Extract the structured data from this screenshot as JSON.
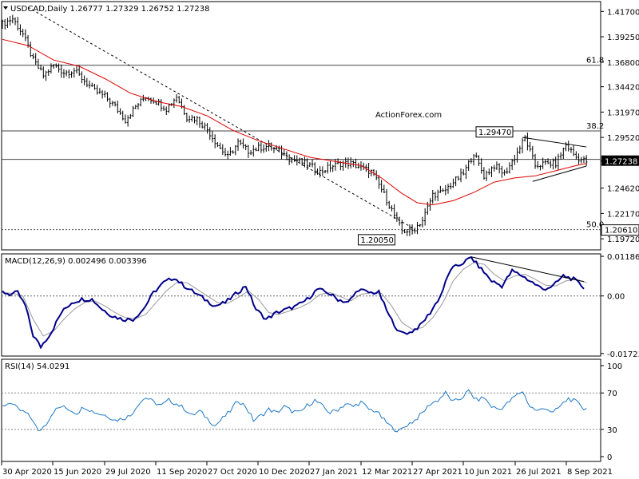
{
  "chart_data": [
    {
      "type": "candlestick",
      "symbol": "USDCAD",
      "timeframe": "Daily",
      "header_text": "USDCAD,Daily  1.26777 1.27329 1.26752 1.27238",
      "ohlc_last": {
        "open": 1.26777,
        "high": 1.27329,
        "low": 1.26752,
        "close": 1.27238
      },
      "last_price_label": "1.27238",
      "ylim": [
        1.1865,
        1.4265
      ],
      "y_ticks": [
        "1.41700",
        "1.39250",
        "1.36800",
        "1.34420",
        "1.31970",
        "1.29520",
        "1.27238",
        "1.24620",
        "1.22170",
        "1.19720"
      ],
      "x_ticks": [
        "30 Apr 2020",
        "15 Jun 2020",
        "29 Jul 2020",
        "11 Sep 2020",
        "27 Oct 2020",
        "10 Dec 2020",
        "27 Jan 2021",
        "12 Mar 2021",
        "27 Apr 2021",
        "10 Jun 2021",
        "26 Jul 2021",
        "8 Sep 2021"
      ],
      "price_path": [
        [
          0,
          1.405
        ],
        [
          4,
          1.41
        ],
        [
          8,
          1.395
        ],
        [
          12,
          1.37
        ],
        [
          16,
          1.355
        ],
        [
          20,
          1.365
        ],
        [
          24,
          1.358
        ],
        [
          28,
          1.36
        ],
        [
          32,
          1.35
        ],
        [
          36,
          1.34
        ],
        [
          40,
          1.335
        ],
        [
          44,
          1.325
        ],
        [
          48,
          1.312
        ],
        [
          52,
          1.325
        ],
        [
          56,
          1.335
        ],
        [
          60,
          1.33
        ],
        [
          64,
          1.323
        ],
        [
          68,
          1.335
        ],
        [
          72,
          1.315
        ],
        [
          76,
          1.313
        ],
        [
          80,
          1.303
        ],
        [
          84,
          1.288
        ],
        [
          88,
          1.276
        ],
        [
          92,
          1.29
        ],
        [
          96,
          1.282
        ],
        [
          100,
          1.285
        ],
        [
          104,
          1.287
        ],
        [
          108,
          1.282
        ],
        [
          112,
          1.275
        ],
        [
          116,
          1.272
        ],
        [
          120,
          1.268
        ],
        [
          124,
          1.262
        ],
        [
          128,
          1.267
        ],
        [
          132,
          1.27
        ],
        [
          136,
          1.27
        ],
        [
          140,
          1.266
        ],
        [
          144,
          1.262
        ],
        [
          148,
          1.245
        ],
        [
          152,
          1.225
        ],
        [
          156,
          1.205
        ],
        [
          160,
          1.205
        ],
        [
          164,
          1.215
        ],
        [
          168,
          1.24
        ],
        [
          172,
          1.242
        ],
        [
          176,
          1.252
        ],
        [
          180,
          1.26
        ],
        [
          184,
          1.28
        ],
        [
          188,
          1.258
        ],
        [
          192,
          1.268
        ],
        [
          196,
          1.26
        ],
        [
          200,
          1.276
        ],
        [
          204,
          1.295
        ],
        [
          208,
          1.268
        ],
        [
          212,
          1.27
        ],
        [
          216,
          1.27
        ],
        [
          220,
          1.288
        ],
        [
          224,
          1.276
        ],
        [
          228,
          1.272
        ]
      ],
      "moving_average": [
        [
          0,
          1.39
        ],
        [
          10,
          1.384
        ],
        [
          20,
          1.37
        ],
        [
          30,
          1.364
        ],
        [
          40,
          1.352
        ],
        [
          50,
          1.338
        ],
        [
          60,
          1.33
        ],
        [
          70,
          1.325
        ],
        [
          80,
          1.316
        ],
        [
          90,
          1.302
        ],
        [
          100,
          1.292
        ],
        [
          110,
          1.284
        ],
        [
          120,
          1.276
        ],
        [
          130,
          1.272
        ],
        [
          140,
          1.268
        ],
        [
          148,
          1.256
        ],
        [
          156,
          1.241
        ],
        [
          162,
          1.232
        ],
        [
          168,
          1.23
        ],
        [
          176,
          1.234
        ],
        [
          184,
          1.242
        ],
        [
          192,
          1.252
        ],
        [
          200,
          1.256
        ],
        [
          208,
          1.258
        ],
        [
          216,
          1.263
        ],
        [
          224,
          1.268
        ],
        [
          228,
          1.27
        ]
      ],
      "horizontal_levels": [
        {
          "value": 1.365,
          "label": "61.8"
        },
        {
          "value": 1.3015,
          "label": "38.2"
        },
        {
          "value": 1.274,
          "label": ""
        },
        {
          "value": 1.2061,
          "label": "50.0",
          "price_label": "1.20610",
          "style": "dashed"
        }
      ],
      "annotations": [
        {
          "text": "1.29470",
          "x": 203,
          "y": 1.2947
        },
        {
          "text": "1.20050",
          "x": 157,
          "y": 1.2005
        }
      ],
      "trendlines": [
        {
          "from": [
            10,
            1.421
          ],
          "to": [
            161,
            1.2065
          ],
          "style": "dashed"
        },
        {
          "from": [
            203,
            1.2952
          ],
          "to": [
            228,
            1.286
          ],
          "style": "solid"
        },
        {
          "from": [
            207,
            1.2527
          ],
          "to": [
            228,
            1.2675
          ],
          "style": "solid"
        }
      ],
      "watermark": "ActionForex.com"
    },
    {
      "type": "line",
      "title": "MACD(12,26,9) 0.002496 0.003396",
      "y_ticks": [
        "0.011862",
        "0.00",
        "-0.017238"
      ],
      "ylim": [
        -0.018,
        0.0126
      ],
      "macd": [
        [
          0,
          0.0012
        ],
        [
          3,
          0.0005
        ],
        [
          6,
          0.001
        ],
        [
          9,
          -0.003
        ],
        [
          12,
          -0.0118
        ],
        [
          15,
          -0.0152
        ],
        [
          19,
          -0.011
        ],
        [
          23,
          -0.005
        ],
        [
          27,
          -0.002
        ],
        [
          31,
          -0.001
        ],
        [
          35,
          -0.001
        ],
        [
          39,
          -0.004
        ],
        [
          43,
          -0.006
        ],
        [
          47,
          -0.007
        ],
        [
          51,
          -0.007
        ],
        [
          55,
          -0.004
        ],
        [
          59,
          0.001
        ],
        [
          63,
          0.004
        ],
        [
          67,
          0.0055
        ],
        [
          71,
          0.003
        ],
        [
          75,
          0.001
        ],
        [
          79,
          -0.001
        ],
        [
          83,
          -0.003
        ],
        [
          87,
          -0.002
        ],
        [
          91,
          0.0005
        ],
        [
          95,
          0.003
        ],
        [
          99,
          -0.004
        ],
        [
          103,
          -0.007
        ],
        [
          107,
          -0.005
        ],
        [
          111,
          -0.004
        ],
        [
          115,
          -0.003
        ],
        [
          119,
          -0.001
        ],
        [
          123,
          0.002
        ],
        [
          127,
          0.001
        ],
        [
          131,
          -0.001
        ],
        [
          135,
          -0.002
        ],
        [
          139,
          0.002
        ],
        [
          143,
          0.001
        ],
        [
          147,
          0.001
        ],
        [
          151,
          -0.006
        ],
        [
          155,
          -0.011
        ],
        [
          159,
          -0.011
        ],
        [
          163,
          -0.009
        ],
        [
          167,
          -0.005
        ],
        [
          171,
          0.0
        ],
        [
          175,
          0.008
        ],
        [
          179,
          0.0095
        ],
        [
          183,
          0.0115
        ],
        [
          187,
          0.008
        ],
        [
          191,
          0.0045
        ],
        [
          195,
          0.003
        ],
        [
          199,
          0.0075
        ],
        [
          203,
          0.006
        ],
        [
          207,
          0.004
        ],
        [
          211,
          0.002
        ],
        [
          215,
          0.003
        ],
        [
          219,
          0.006
        ],
        [
          223,
          0.005
        ],
        [
          227,
          0.0025
        ]
      ],
      "signal": [
        [
          0,
          0.001
        ],
        [
          4,
          0.0008
        ],
        [
          8,
          0.0
        ],
        [
          12,
          -0.007
        ],
        [
          16,
          -0.012
        ],
        [
          20,
          -0.0105
        ],
        [
          24,
          -0.007
        ],
        [
          28,
          -0.004
        ],
        [
          32,
          -0.002
        ],
        [
          36,
          -0.0015
        ],
        [
          40,
          -0.003
        ],
        [
          44,
          -0.005
        ],
        [
          48,
          -0.0065
        ],
        [
          52,
          -0.0068
        ],
        [
          56,
          -0.0055
        ],
        [
          60,
          -0.002
        ],
        [
          64,
          0.0015
        ],
        [
          68,
          0.004
        ],
        [
          72,
          0.004
        ],
        [
          76,
          0.002
        ],
        [
          80,
          0.0
        ],
        [
          84,
          -0.002
        ],
        [
          88,
          -0.0022
        ],
        [
          92,
          -0.0005
        ],
        [
          96,
          0.0015
        ],
        [
          100,
          -0.001
        ],
        [
          104,
          -0.005
        ],
        [
          108,
          -0.0055
        ],
        [
          112,
          -0.0045
        ],
        [
          116,
          -0.0035
        ],
        [
          120,
          -0.002
        ],
        [
          124,
          0.0005
        ],
        [
          128,
          0.001
        ],
        [
          132,
          -0.0002
        ],
        [
          136,
          -0.0015
        ],
        [
          140,
          0.0005
        ],
        [
          144,
          0.001
        ],
        [
          148,
          0.0008
        ],
        [
          152,
          -0.003
        ],
        [
          156,
          -0.008
        ],
        [
          160,
          -0.01
        ],
        [
          164,
          -0.0095
        ],
        [
          168,
          -0.0065
        ],
        [
          172,
          -0.002
        ],
        [
          176,
          0.0045
        ],
        [
          180,
          0.008
        ],
        [
          184,
          0.01
        ],
        [
          188,
          0.0095
        ],
        [
          192,
          0.0065
        ],
        [
          196,
          0.0045
        ],
        [
          200,
          0.006
        ],
        [
          204,
          0.0065
        ],
        [
          208,
          0.005
        ],
        [
          212,
          0.0032
        ],
        [
          216,
          0.003
        ],
        [
          220,
          0.0045
        ],
        [
          224,
          0.005
        ],
        [
          228,
          0.004
        ]
      ],
      "trendline": {
        "from": [
          183,
          0.0117
        ],
        "to": [
          227,
          0.0043
        ]
      }
    },
    {
      "type": "line",
      "title": "RSI(14) 54.0291",
      "y_ticks": [
        "100",
        "70",
        "30",
        "0"
      ],
      "levels": [
        70,
        30
      ],
      "ylim": [
        0,
        100
      ],
      "rsi": [
        [
          0,
          55
        ],
        [
          3,
          60
        ],
        [
          6,
          52
        ],
        [
          9,
          48
        ],
        [
          12,
          40
        ],
        [
          14,
          27
        ],
        [
          17,
          36
        ],
        [
          20,
          50
        ],
        [
          23,
          55
        ],
        [
          26,
          52
        ],
        [
          29,
          48
        ],
        [
          32,
          55
        ],
        [
          35,
          50
        ],
        [
          38,
          47
        ],
        [
          41,
          45
        ],
        [
          44,
          40
        ],
        [
          47,
          42
        ],
        [
          50,
          45
        ],
        [
          53,
          58
        ],
        [
          56,
          65
        ],
        [
          59,
          60
        ],
        [
          62,
          56
        ],
        [
          65,
          62
        ],
        [
          68,
          58
        ],
        [
          71,
          53
        ],
        [
          74,
          45
        ],
        [
          77,
          50
        ],
        [
          80,
          42
        ],
        [
          83,
          34
        ],
        [
          86,
          42
        ],
        [
          89,
          50
        ],
        [
          92,
          62
        ],
        [
          95,
          55
        ],
        [
          98,
          40
        ],
        [
          101,
          45
        ],
        [
          104,
          52
        ],
        [
          107,
          48
        ],
        [
          110,
          55
        ],
        [
          113,
          50
        ],
        [
          116,
          48
        ],
        [
          119,
          56
        ],
        [
          122,
          62
        ],
        [
          125,
          55
        ],
        [
          128,
          48
        ],
        [
          131,
          52
        ],
        [
          134,
          58
        ],
        [
          137,
          55
        ],
        [
          140,
          60
        ],
        [
          143,
          52
        ],
        [
          146,
          50
        ],
        [
          149,
          40
        ],
        [
          152,
          32
        ],
        [
          155,
          28
        ],
        [
          158,
          35
        ],
        [
          161,
          40
        ],
        [
          164,
          48
        ],
        [
          167,
          58
        ],
        [
          170,
          62
        ],
        [
          173,
          70
        ],
        [
          176,
          60
        ],
        [
          179,
          64
        ],
        [
          182,
          72
        ],
        [
          185,
          62
        ],
        [
          188,
          65
        ],
        [
          191,
          55
        ],
        [
          194,
          52
        ],
        [
          197,
          58
        ],
        [
          200,
          66
        ],
        [
          203,
          72
        ],
        [
          206,
          55
        ],
        [
          209,
          50
        ],
        [
          212,
          54
        ],
        [
          215,
          48
        ],
        [
          218,
          56
        ],
        [
          221,
          64
        ],
        [
          224,
          60
        ],
        [
          227,
          53
        ],
        [
          228,
          54
        ]
      ]
    }
  ]
}
